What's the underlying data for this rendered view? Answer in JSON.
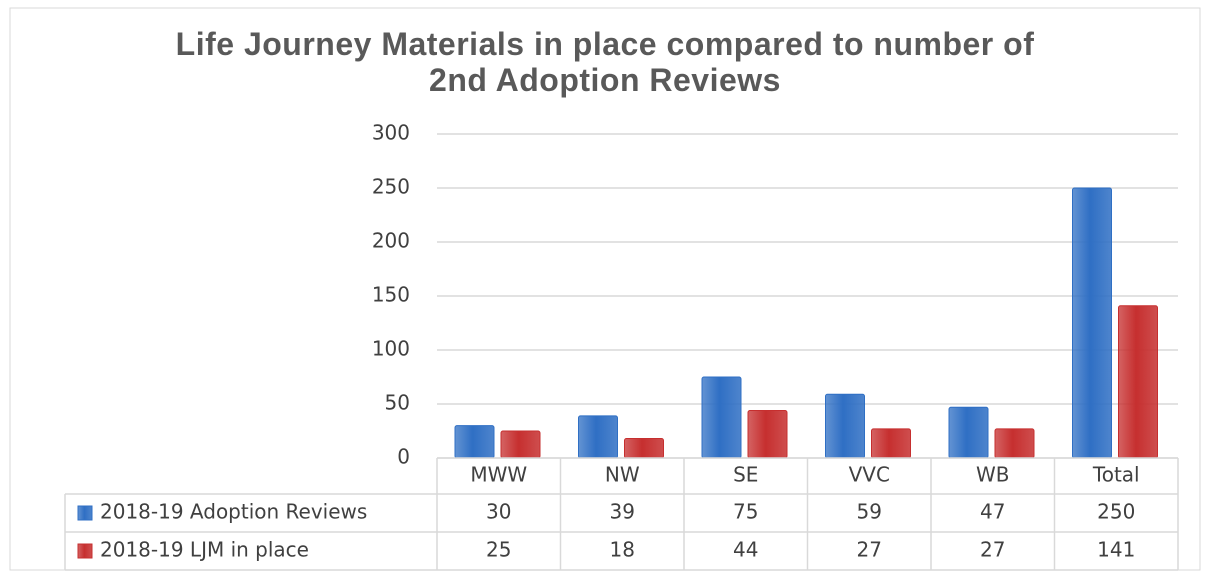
{
  "chart_data": {
    "type": "bar",
    "title": "Life Journey Materials in place compared to number of 2nd Adoption Reviews",
    "categories": [
      "MWW",
      "NW",
      "SE",
      "VVC",
      "WB",
      "Total"
    ],
    "series": [
      {
        "name": "2018-19 Adoption Reviews",
        "color": "#2f6fc4",
        "values": [
          30,
          39,
          75,
          59,
          47,
          250
        ]
      },
      {
        "name": "2018-19 LJM in place",
        "color": "#c62f2f",
        "values": [
          25,
          18,
          44,
          27,
          27,
          141
        ]
      }
    ],
    "ylim": [
      0,
      300
    ],
    "yticks": [
      0,
      50,
      100,
      150,
      200,
      250,
      300
    ],
    "grid": true,
    "data_table": true
  }
}
